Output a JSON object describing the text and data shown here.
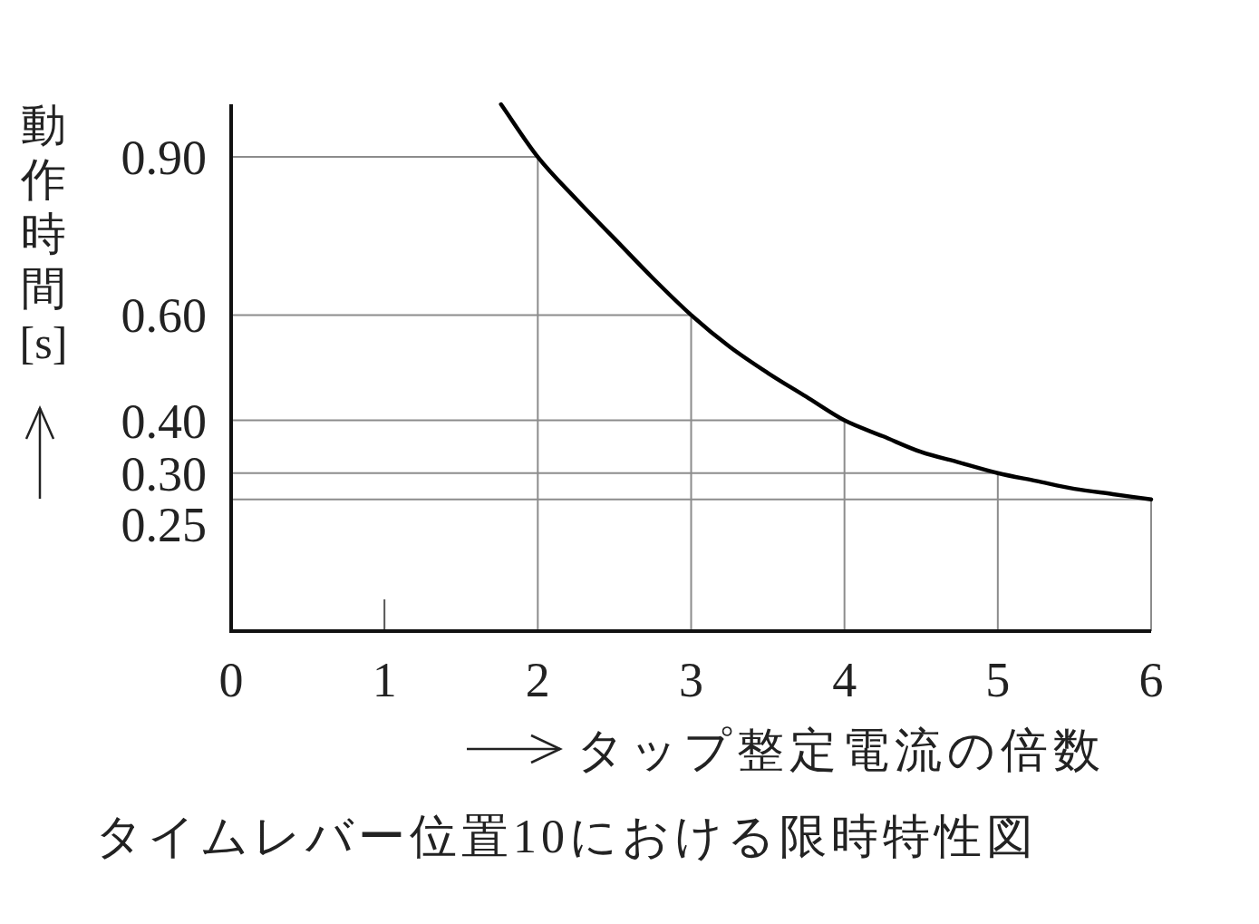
{
  "chart_data": {
    "type": "line",
    "xlabel": "タップ整定電流の倍数",
    "ylabel": "動作時間[s]",
    "annotations": [
      "タイムレバー位置10における限時特性図"
    ],
    "x": [
      1.76,
      2,
      2.25,
      2.5,
      2.75,
      3,
      3.25,
      3.5,
      3.75,
      4,
      4.25,
      4.5,
      4.75,
      5,
      5.25,
      5.5,
      5.75,
      6
    ],
    "values": [
      1.0,
      0.9,
      0.82,
      0.745,
      0.67,
      0.6,
      0.54,
      0.49,
      0.445,
      0.4,
      0.37,
      0.34,
      0.32,
      0.3,
      0.285,
      0.27,
      0.26,
      0.25
    ],
    "color": "#000000",
    "xlim": [
      0,
      6
    ],
    "ylim": [
      0,
      1.0
    ],
    "xticks": [
      0,
      1,
      2,
      3,
      4,
      5,
      6
    ],
    "yticks": [
      {
        "value": 0.9,
        "label": "0.90"
      },
      {
        "value": 0.6,
        "label": "0.60"
      },
      {
        "value": 0.4,
        "label": "0.40"
      },
      {
        "value": 0.3,
        "label": "0.30"
      },
      {
        "value": 0.25,
        "label": "0.25"
      }
    ],
    "ref_lines": [
      {
        "axis": "y",
        "value": 0.9,
        "color": "#8c8c8c"
      },
      {
        "axis": "y",
        "value": 0.6,
        "color": "#8c8c8c"
      },
      {
        "axis": "y",
        "value": 0.4,
        "color": "#8c8c8c"
      },
      {
        "axis": "y",
        "value": 0.3,
        "color": "#8c8c8c"
      },
      {
        "axis": "y",
        "value": 0.25,
        "color": "#8c8c8c"
      },
      {
        "axis": "x",
        "value": 2,
        "color": "#8c8c8c"
      },
      {
        "axis": "x",
        "value": 3,
        "color": "#8c8c8c"
      },
      {
        "axis": "x",
        "value": 4,
        "color": "#8c8c8c"
      },
      {
        "axis": "x",
        "value": 5,
        "color": "#8c8c8c"
      },
      {
        "axis": "x",
        "value": 6,
        "color": "#8c8c8c"
      }
    ]
  }
}
